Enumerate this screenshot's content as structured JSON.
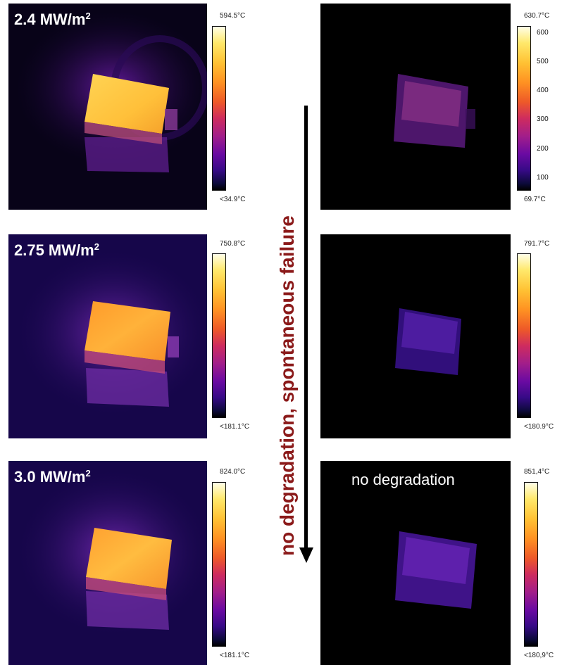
{
  "rows": [
    {
      "label_main": "2.4 MW/m",
      "label_sup": "2",
      "left": {
        "max": "594.5°C",
        "min": "<34.9°C"
      },
      "right": {
        "max": "630.7°C",
        "min": "69.7°C",
        "ticks": [
          "600",
          "500",
          "400",
          "300",
          "200",
          "100"
        ]
      }
    },
    {
      "label_main": "2.75 MW/m",
      "label_sup": "2",
      "left": {
        "max": "750.8°C",
        "min": "<181.1°C"
      },
      "right": {
        "max": "791.7°C",
        "min": "<180.9°C"
      }
    },
    {
      "label_main": "3.0 MW/m",
      "label_sup": "2",
      "left": {
        "max": "824.0°C",
        "min": "<181.1°C"
      },
      "right": {
        "max": "851,4°C",
        "min": "<180,9°C",
        "note": "no degradation"
      }
    }
  ],
  "arrow": {
    "text": "no degradation, spontaneous failure",
    "color": "#8b1a1a"
  },
  "colormap": {
    "hot": "#ffe86a",
    "mid": "#ee5a28",
    "cool": "#6a0aa2",
    "cold": "#000000"
  }
}
